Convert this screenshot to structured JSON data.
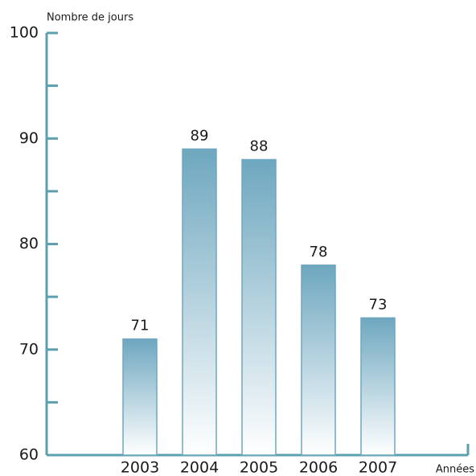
{
  "chart_data": {
    "type": "bar",
    "y_axis_label": "Nombre de jours",
    "x_axis_label": "Années",
    "categories": [
      "2003",
      "2004",
      "2005",
      "2006",
      "2007"
    ],
    "values": [
      71,
      89,
      88,
      78,
      73
    ],
    "color": "#6ea7bf",
    "axis_color": "#5b9fb1",
    "ylim": [
      60,
      100
    ],
    "yticks": [
      60,
      70,
      80,
      90,
      100
    ],
    "minor_yticks": [
      65,
      75,
      85,
      95
    ],
    "grid": false
  }
}
